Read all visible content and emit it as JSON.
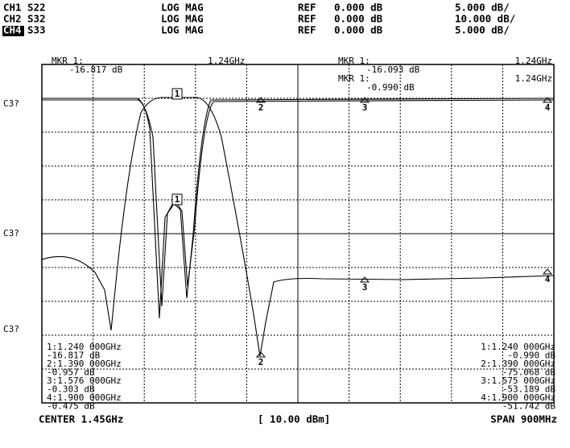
{
  "header": {
    "rows": [
      {
        "channel": "CH1",
        "param": "S22",
        "format": "LOG MAG",
        "ref_label": "REF",
        "ref_value": "0.000 dB",
        "scale": "5.000 dB/"
      },
      {
        "channel": "CH2",
        "param": "S32",
        "format": "LOG MAG",
        "ref_label": "REF",
        "ref_value": "0.000 dB",
        "scale": "10.000 dB/"
      },
      {
        "channel": "CH4",
        "param": "S33",
        "format": "LOG MAG",
        "ref_label": "REF",
        "ref_value": "0.000 dB",
        "scale": "5.000 dB/"
      }
    ]
  },
  "markers": {
    "left": {
      "label": "MKR 1:",
      "freq": "1.24GHz",
      "value": "-16.817 dB"
    },
    "right": [
      {
        "label": "MKR 1:",
        "freq": "1.24GHz",
        "value": "-16.093 dB"
      },
      {
        "label": "MKR 1:",
        "freq": "1.24GHz",
        "value": "-0.990 dB"
      }
    ]
  },
  "side_labels": [
    "C3?",
    "C3?",
    "C3?"
  ],
  "trace_markers": [
    "1",
    "2",
    "3",
    "4",
    "1",
    "2",
    "3",
    "4"
  ],
  "readouts": {
    "left": [
      "1:1.240 000GHz",
      "-16.817 dB",
      "2:1.390 000GHz",
      "-0.957 dB",
      "3:1.576 000GHz",
      "-0.303 dB",
      "4:1.900 000GHz",
      "-0.475 dB"
    ],
    "right": [
      "1:1.240 000GHz",
      "-0.990 dB",
      "2:1.390 000GHz",
      "-75.068 dB",
      "3:1.575 000GHz",
      "-53.189 dB",
      "4:1.900 000GHz",
      "-51.742 dB"
    ]
  },
  "footer": {
    "center": "CENTER 1.45GHz",
    "power": "[ 10.00 dBm]",
    "span": "SPAN 900MHz"
  }
}
